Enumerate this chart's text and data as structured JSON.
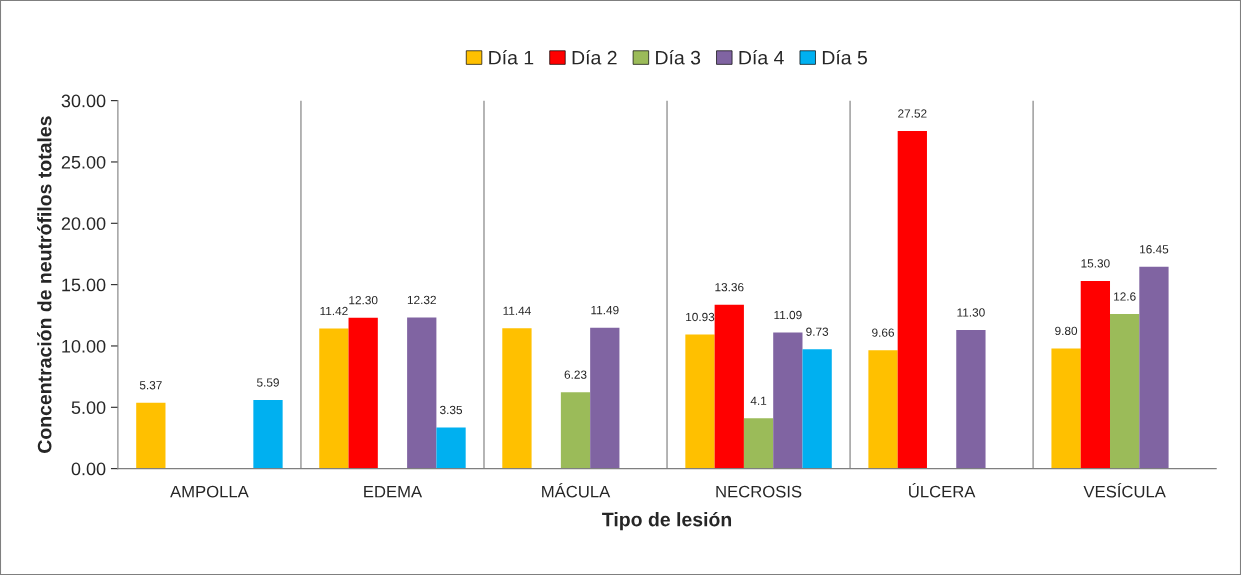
{
  "chart_data": {
    "type": "bar",
    "xlabel": "Tipo de lesión",
    "ylabel": "Concentración de neutrófilos totales",
    "categories": [
      "AMPOLLA",
      "EDEMA",
      "MÁCULA",
      "NECROSIS",
      "ÚLCERA",
      "VESÍCULA"
    ],
    "series": [
      {
        "name": "Día 1",
        "color": "#ffc000",
        "values": [
          5.37,
          11.42,
          11.44,
          10.93,
          9.66,
          9.8
        ],
        "value_labels": [
          "5.37",
          "11.42",
          "11.44",
          "10.93",
          "9.66",
          "9.80"
        ]
      },
      {
        "name": "Día 2",
        "color": "#ff0000",
        "values": [
          null,
          12.3,
          null,
          13.36,
          27.52,
          15.3
        ],
        "value_labels": [
          null,
          "12.30",
          null,
          "13.36",
          "27.52",
          "15.30"
        ]
      },
      {
        "name": "Día 3",
        "color": "#9bbb59",
        "values": [
          null,
          null,
          6.23,
          4.1,
          null,
          12.6
        ],
        "value_labels": [
          null,
          null,
          "6.23",
          "4.1",
          null,
          "12.6"
        ]
      },
      {
        "name": "Día 4",
        "color": "#8064a2",
        "values": [
          null,
          12.32,
          11.49,
          11.09,
          11.3,
          16.45
        ],
        "value_labels": [
          null,
          "12.32",
          "11.49",
          "11.09",
          "11.30",
          "16.45"
        ]
      },
      {
        "name": "Día 5",
        "color": "#00b0f0",
        "values": [
          5.59,
          3.35,
          null,
          9.73,
          null,
          null
        ],
        "value_labels": [
          "5.59",
          "3.35",
          null,
          "9.73",
          null,
          null
        ]
      }
    ],
    "ylim": [
      0,
      30
    ],
    "yticks": [
      {
        "value": 0,
        "label": "0.00"
      },
      {
        "value": 5,
        "label": "5.00"
      },
      {
        "value": 10,
        "label": "10.00"
      },
      {
        "value": 15,
        "label": "15.00"
      },
      {
        "value": 20,
        "label": "20.00"
      },
      {
        "value": 25,
        "label": "25.00"
      },
      {
        "value": 30,
        "label": "30.00"
      }
    ],
    "grid": "x",
    "legend": "top"
  }
}
